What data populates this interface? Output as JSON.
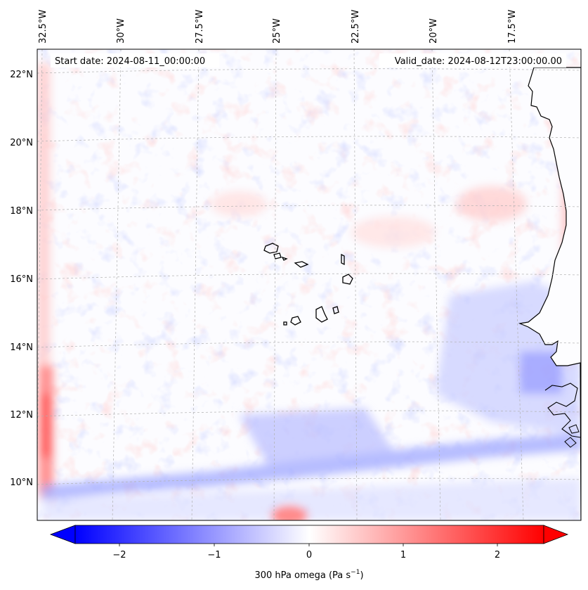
{
  "header": {
    "start_date": "Start date: 2024-08-11_00:00:00",
    "valid_date": "Valid_date: 2024-08-12T23:00:00.00"
  },
  "map": {
    "lon_labels": [
      "32.5°W",
      "30°W",
      "27.5°W",
      "25°W",
      "22.5°W",
      "20°W",
      "17.5°W"
    ],
    "lat_labels": [
      "22°N",
      "20°N",
      "18°N",
      "16°N",
      "14°N",
      "12°N",
      "10°N"
    ],
    "field": "300 hPa omega",
    "colormap": "bwr",
    "colors": {
      "negative": "#0000ff",
      "positive": "#ff0000",
      "neutral": "#ffffff",
      "coastline": "#000000",
      "grid": "#b0b0b0"
    },
    "grid": true
  },
  "colorbar": {
    "ticks": [
      "−2",
      "−1",
      "0",
      "1",
      "2"
    ],
    "label_main": "300 hPa omega (Pa s",
    "label_exp": "−1",
    "label_close": ")",
    "range": [
      -2.6,
      2.6
    ],
    "extend": "both"
  }
}
